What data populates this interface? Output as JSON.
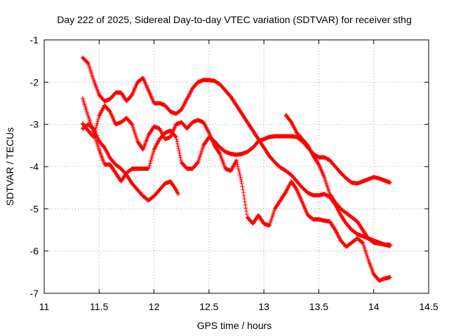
{
  "chart_data": {
    "type": "scatter",
    "title": "Day 222 of 2025, Sidereal Day-to-day VTEC variation (SDTVAR) for receiver sthg",
    "xlabel": "GPS time / hours",
    "ylabel": "SDTVAR / TECUs",
    "xlim": [
      11,
      14.5
    ],
    "ylim": [
      -7,
      -1
    ],
    "xticks": [
      11,
      11.5,
      12,
      12.5,
      13,
      13.5,
      14,
      14.5
    ],
    "yticks": [
      -1,
      -2,
      -3,
      -4,
      -5,
      -6,
      -7
    ],
    "xtick_labels": [
      "11",
      "11.5",
      "12",
      "12.5",
      "13",
      "13.5",
      "14",
      "14.5"
    ],
    "ytick_labels": [
      "-1",
      "-2",
      "-3",
      "-4",
      "-5",
      "-6",
      "-7"
    ],
    "grid": true,
    "marker": "+",
    "color": "#ff0000",
    "series": [
      {
        "name": "track-1",
        "points": [
          [
            11.35,
            -1.42
          ],
          [
            11.4,
            -1.55
          ],
          [
            11.45,
            -1.95
          ],
          [
            11.5,
            -2.3
          ],
          [
            11.55,
            -2.45
          ],
          [
            11.6,
            -2.4
          ],
          [
            11.65,
            -2.25
          ],
          [
            11.7,
            -2.25
          ],
          [
            11.75,
            -2.45
          ],
          [
            11.8,
            -2.3
          ],
          [
            11.85,
            -2.0
          ],
          [
            11.9,
            -1.9
          ],
          [
            11.95,
            -2.2
          ],
          [
            12.0,
            -2.5
          ],
          [
            12.05,
            -2.5
          ],
          [
            12.1,
            -2.55
          ],
          [
            12.15,
            -2.7
          ],
          [
            12.2,
            -2.75
          ],
          [
            12.25,
            -2.65
          ],
          [
            12.3,
            -2.4
          ],
          [
            12.35,
            -2.15
          ],
          [
            12.4,
            -2.0
          ],
          [
            12.45,
            -1.95
          ],
          [
            12.5,
            -1.95
          ],
          [
            12.55,
            -1.97
          ],
          [
            12.6,
            -2.05
          ],
          [
            12.65,
            -2.2
          ],
          [
            12.7,
            -2.35
          ],
          [
            12.75,
            -2.55
          ],
          [
            12.8,
            -2.75
          ],
          [
            12.85,
            -2.95
          ],
          [
            12.9,
            -3.15
          ],
          [
            12.95,
            -3.35
          ],
          [
            13.0,
            -3.55
          ],
          [
            13.05,
            -3.75
          ],
          [
            13.1,
            -3.9
          ],
          [
            13.15,
            -4.02
          ],
          [
            13.2,
            -4.1
          ],
          [
            13.25,
            -4.2
          ],
          [
            13.3,
            -4.35
          ],
          [
            13.35,
            -4.5
          ],
          [
            13.4,
            -4.62
          ],
          [
            13.45,
            -4.68
          ],
          [
            13.5,
            -4.68
          ],
          [
            13.55,
            -4.65
          ],
          [
            13.6,
            -4.72
          ],
          [
            13.65,
            -4.9
          ],
          [
            13.7,
            -5.15
          ],
          [
            13.75,
            -5.35
          ],
          [
            13.8,
            -5.5
          ],
          [
            13.85,
            -5.6
          ],
          [
            13.9,
            -5.65
          ],
          [
            13.95,
            -5.7
          ],
          [
            14.0,
            -5.75
          ],
          [
            14.05,
            -5.8
          ],
          [
            14.1,
            -5.85
          ],
          [
            14.15,
            -5.88
          ]
        ]
      },
      {
        "name": "track-2",
        "points": [
          [
            11.35,
            -2.38
          ],
          [
            11.4,
            -2.8
          ],
          [
            11.45,
            -3.2
          ],
          [
            11.5,
            -3.6
          ],
          [
            11.55,
            -3.95
          ],
          [
            11.6,
            -3.95
          ],
          [
            11.65,
            -4.15
          ],
          [
            11.7,
            -4.35
          ],
          [
            11.75,
            -4.15
          ],
          [
            11.8,
            -4.05
          ],
          [
            11.85,
            -4.05
          ],
          [
            11.9,
            -4.05
          ],
          [
            11.95,
            -4.05
          ],
          [
            12.0,
            -3.6
          ],
          [
            12.05,
            -3.35
          ],
          [
            12.1,
            -3.2
          ],
          [
            12.15,
            -3.15
          ],
          [
            12.2,
            -3.3
          ],
          [
            12.25,
            -3.9
          ],
          [
            12.3,
            -4.05
          ],
          [
            12.35,
            -4.05
          ],
          [
            12.4,
            -3.9
          ],
          [
            12.45,
            -3.5
          ],
          [
            12.5,
            -3.3
          ],
          [
            12.55,
            -3.4
          ],
          [
            12.6,
            -3.55
          ],
          [
            12.65,
            -3.65
          ],
          [
            12.7,
            -3.7
          ],
          [
            12.75,
            -3.72
          ],
          [
            12.8,
            -3.7
          ],
          [
            12.85,
            -3.65
          ],
          [
            12.9,
            -3.55
          ],
          [
            12.95,
            -3.4
          ],
          [
            13.0,
            -3.35
          ],
          [
            13.05,
            -3.3
          ],
          [
            13.1,
            -3.28
          ],
          [
            13.15,
            -3.28
          ],
          [
            13.2,
            -3.28
          ],
          [
            13.25,
            -3.28
          ],
          [
            13.3,
            -3.3
          ],
          [
            13.35,
            -3.4
          ],
          [
            13.4,
            -3.55
          ],
          [
            13.45,
            -3.7
          ],
          [
            13.5,
            -3.78
          ],
          [
            13.55,
            -3.78
          ],
          [
            13.6,
            -3.85
          ],
          [
            13.65,
            -4.0
          ],
          [
            13.7,
            -4.15
          ],
          [
            13.75,
            -4.28
          ],
          [
            13.8,
            -4.38
          ],
          [
            13.85,
            -4.4
          ],
          [
            13.9,
            -4.35
          ],
          [
            13.95,
            -4.3
          ],
          [
            14.0,
            -4.25
          ],
          [
            14.05,
            -4.28
          ],
          [
            14.1,
            -4.33
          ],
          [
            14.15,
            -4.38
          ]
        ]
      },
      {
        "name": "track-3",
        "points": [
          [
            11.35,
            -3.1
          ],
          [
            11.4,
            -3.0
          ],
          [
            11.45,
            -3.1
          ],
          [
            11.5,
            -3.4
          ],
          [
            11.55,
            -3.55
          ],
          [
            11.6,
            -3.8
          ],
          [
            11.65,
            -3.95
          ],
          [
            11.7,
            -4.05
          ],
          [
            11.75,
            -4.2
          ],
          [
            11.8,
            -4.4
          ],
          [
            11.85,
            -4.55
          ],
          [
            11.9,
            -4.7
          ],
          [
            11.95,
            -4.8
          ],
          [
            12.0,
            -4.7
          ],
          [
            12.05,
            -4.55
          ],
          [
            12.1,
            -4.4
          ],
          [
            12.15,
            -4.35
          ],
          [
            12.2,
            -4.55
          ],
          [
            12.22,
            -4.65
          ]
        ]
      },
      {
        "name": "track-4",
        "points": [
          [
            11.35,
            -2.98
          ],
          [
            11.4,
            -3.15
          ],
          [
            11.45,
            -3.3
          ],
          [
            11.5,
            -2.8
          ],
          [
            11.55,
            -2.55
          ],
          [
            11.6,
            -2.7
          ],
          [
            11.65,
            -3.0
          ],
          [
            11.7,
            -2.95
          ],
          [
            11.75,
            -2.85
          ],
          [
            11.8,
            -3.0
          ],
          [
            11.85,
            -3.4
          ],
          [
            11.9,
            -3.6
          ],
          [
            11.95,
            -3.25
          ],
          [
            12.0,
            -3.05
          ],
          [
            12.05,
            -3.1
          ],
          [
            12.1,
            -3.35
          ],
          [
            12.15,
            -3.3
          ],
          [
            12.2,
            -3.0
          ],
          [
            12.25,
            -2.95
          ],
          [
            12.3,
            -3.1
          ],
          [
            12.35,
            -2.95
          ],
          [
            12.4,
            -2.9
          ],
          [
            12.45,
            -2.95
          ],
          [
            12.5,
            -3.2
          ],
          [
            12.55,
            -3.5
          ],
          [
            12.6,
            -3.7
          ],
          [
            12.65,
            -4.05
          ],
          [
            12.7,
            -4.1
          ],
          [
            12.75,
            -3.85
          ],
          [
            12.8,
            -4.4
          ],
          [
            12.85,
            -5.2
          ],
          [
            12.9,
            -5.35
          ],
          [
            12.95,
            -5.15
          ],
          [
            13.0,
            -5.35
          ],
          [
            13.05,
            -5.4
          ],
          [
            13.1,
            -5.0
          ],
          [
            13.15,
            -4.8
          ],
          [
            13.2,
            -4.6
          ],
          [
            13.25,
            -4.35
          ],
          [
            13.3,
            -4.55
          ],
          [
            13.35,
            -4.85
          ],
          [
            13.4,
            -5.15
          ],
          [
            13.45,
            -5.25
          ],
          [
            13.5,
            -5.25
          ],
          [
            13.55,
            -5.28
          ],
          [
            13.6,
            -5.3
          ],
          [
            13.65,
            -5.5
          ],
          [
            13.7,
            -5.75
          ],
          [
            13.75,
            -5.9
          ],
          [
            13.8,
            -5.8
          ],
          [
            13.85,
            -5.7
          ],
          [
            13.9,
            -5.8
          ],
          [
            13.95,
            -6.2
          ],
          [
            14.0,
            -6.55
          ],
          [
            14.05,
            -6.7
          ],
          [
            14.1,
            -6.65
          ],
          [
            14.15,
            -6.62
          ]
        ]
      },
      {
        "name": "track-5",
        "points": [
          [
            13.2,
            -2.78
          ],
          [
            13.25,
            -2.95
          ],
          [
            13.3,
            -3.2
          ],
          [
            13.35,
            -3.35
          ],
          [
            13.4,
            -3.5
          ],
          [
            13.45,
            -3.75
          ],
          [
            13.5,
            -3.95
          ],
          [
            13.55,
            -4.25
          ],
          [
            13.6,
            -4.65
          ],
          [
            13.65,
            -4.85
          ],
          [
            13.7,
            -5.0
          ],
          [
            13.75,
            -5.1
          ],
          [
            13.8,
            -5.2
          ],
          [
            13.85,
            -5.3
          ],
          [
            13.9,
            -5.5
          ],
          [
            13.95,
            -5.7
          ],
          [
            14.0,
            -5.8
          ],
          [
            14.05,
            -5.82
          ],
          [
            14.1,
            -5.85
          ],
          [
            14.15,
            -5.85
          ]
        ]
      }
    ]
  }
}
